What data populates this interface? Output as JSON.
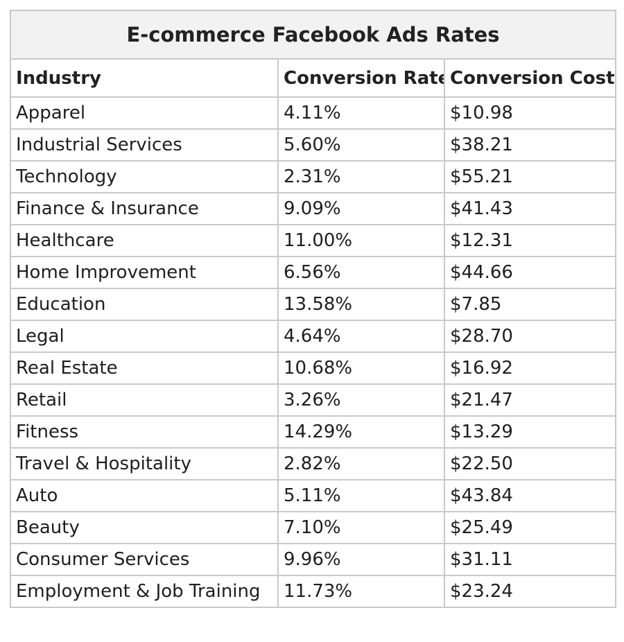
{
  "table": {
    "title": "E-commerce Facebook Ads Rates",
    "headers": [
      "Industry",
      "Conversion Rate",
      "Conversion Cost"
    ],
    "rows": [
      [
        "Apparel",
        "4.11%",
        "$10.98"
      ],
      [
        "Industrial Services",
        "5.60%",
        "$38.21"
      ],
      [
        "Technology",
        "2.31%",
        "$55.21"
      ],
      [
        "Finance & Insurance",
        "9.09%",
        "$41.43"
      ],
      [
        "Healthcare",
        "11.00%",
        "$12.31"
      ],
      [
        "Home Improvement",
        "6.56%",
        "$44.66"
      ],
      [
        "Education",
        "13.58%",
        "$7.85"
      ],
      [
        "Legal",
        "4.64%",
        "$28.70"
      ],
      [
        "Real Estate",
        "10.68%",
        "$16.92"
      ],
      [
        "Retail",
        "3.26%",
        "$21.47"
      ],
      [
        "Fitness",
        "14.29%",
        "$13.29"
      ],
      [
        "Travel & Hospitality",
        "2.82%",
        "$22.50"
      ],
      [
        "Auto",
        "5.11%",
        "$43.84"
      ],
      [
        "Beauty",
        "7.10%",
        "$25.49"
      ],
      [
        "Consumer Services",
        "9.96%",
        "$31.11"
      ],
      [
        "Employment & Job Training",
        "11.73%",
        "$23.24"
      ]
    ]
  },
  "colors": {
    "border": "#c9c9c9",
    "title_background": "#f2f2f2",
    "text": "#1e1e1e"
  }
}
